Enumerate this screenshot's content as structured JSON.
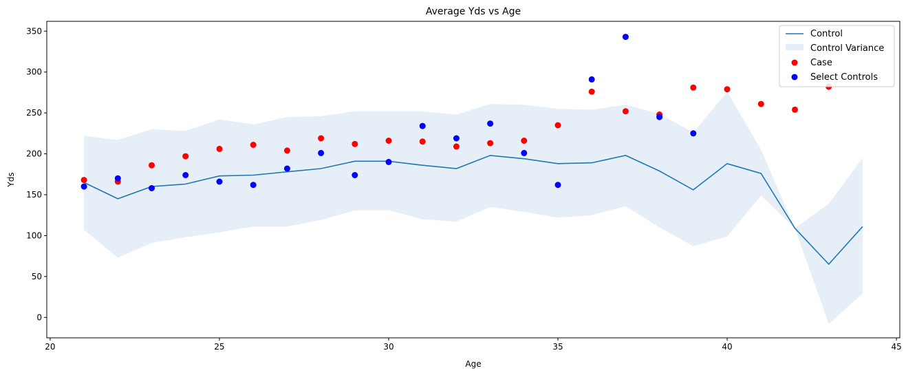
{
  "chart_data": {
    "type": "line",
    "title": "Average Yds vs Age",
    "xlabel": "Age",
    "ylabel": "Yds",
    "xlim": [
      19.9,
      45.1
    ],
    "ylim": [
      -25,
      362
    ],
    "xticks": [
      20,
      25,
      30,
      35,
      40,
      45
    ],
    "yticks": [
      0,
      50,
      100,
      150,
      200,
      250,
      300,
      350
    ],
    "grid": false,
    "legend_position": "top-right",
    "legend": [
      "Control",
      "Control Variance",
      "Case",
      "Select Controls"
    ],
    "colors": {
      "control": "#1f77b4",
      "variance": "#e6eff7",
      "case": "#ff0000",
      "select_controls": "#0000ff"
    },
    "control": {
      "x": [
        21,
        22,
        23,
        24,
        25,
        26,
        27,
        28,
        29,
        30,
        31,
        32,
        33,
        34,
        35,
        36,
        37,
        38,
        39,
        40,
        41,
        42,
        43,
        44
      ],
      "y": [
        165,
        145,
        160,
        163,
        173,
        174,
        178,
        182,
        191,
        191,
        186,
        182,
        198,
        194,
        188,
        189,
        198,
        179,
        156,
        188,
        176,
        109,
        65,
        111
      ]
    },
    "variance": {
      "x": [
        21,
        22,
        23,
        24,
        25,
        26,
        27,
        28,
        29,
        30,
        31,
        32,
        33,
        34,
        35,
        36,
        37,
        38,
        39,
        40,
        41,
        42,
        43,
        44
      ],
      "upper": [
        222,
        217,
        230,
        228,
        242,
        236,
        245,
        246,
        252,
        252,
        252,
        248,
        261,
        260,
        255,
        254,
        260,
        249,
        226,
        276,
        205,
        109,
        139,
        195
      ],
      "lower": [
        107,
        73,
        91,
        98,
        104,
        111,
        111,
        119,
        131,
        131,
        120,
        117,
        135,
        129,
        122,
        125,
        136,
        110,
        87,
        99,
        149,
        109,
        -8,
        29
      ]
    },
    "case": {
      "x": [
        21,
        22,
        23,
        24,
        25,
        26,
        27,
        28,
        29,
        30,
        31,
        32,
        33,
        34,
        35,
        36,
        37,
        38,
        39,
        40,
        41,
        42,
        43
      ],
      "y": [
        168,
        166,
        186,
        197,
        206,
        211,
        204,
        219,
        212,
        216,
        215,
        209,
        213,
        216,
        235,
        276,
        252,
        248,
        281,
        279,
        261,
        254,
        282
      ]
    },
    "select_controls": {
      "x": [
        21,
        22,
        23,
        24,
        25,
        26,
        27,
        28,
        29,
        30,
        31,
        32,
        33,
        34,
        35,
        36,
        37,
        38,
        39
      ],
      "y": [
        160,
        170,
        158,
        174,
        166,
        162,
        182,
        201,
        174,
        190,
        234,
        219,
        237,
        201,
        162,
        291,
        343,
        245,
        225
      ]
    }
  }
}
